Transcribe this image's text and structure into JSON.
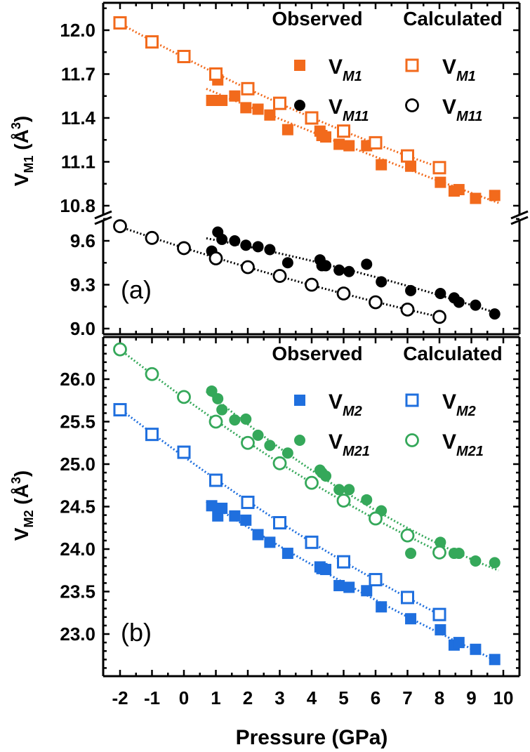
{
  "chart_data": [
    {
      "type": "scatter",
      "panel_label": "(a)",
      "xlabel": "Pressure (GPa)",
      "ylabel": {
        "main": "V",
        "sub": "M1",
        "unit": " (Å",
        "sup": "3",
        "close": ")"
      },
      "xlim": [
        -2.5,
        10.5
      ],
      "y_broken_axis": true,
      "ylim_upper": [
        10.72,
        12.19
      ],
      "ylim_lower": [
        8.96,
        9.76
      ],
      "yticks_upper": [
        "12.0",
        "11.7",
        "11.4",
        "11.1",
        "10.8"
      ],
      "yticks_lower": [
        "9.6",
        "9.3",
        "9.0"
      ],
      "legend": {
        "placement": "top-right",
        "observed_title": "Observed",
        "calculated_title": "Calculated"
      },
      "series": [
        {
          "name": "V",
          "sub": "M1",
          "kind": "observed",
          "marker": "filled-square",
          "color": "#f26a1c",
          "segment": "upper",
          "points": [
            [
              0.87,
              11.52
            ],
            [
              1.06,
              11.66
            ],
            [
              1.19,
              11.52
            ],
            [
              1.59,
              11.55
            ],
            [
              1.94,
              11.47
            ],
            [
              2.32,
              11.46
            ],
            [
              2.69,
              11.42
            ],
            [
              3.25,
              11.32
            ],
            [
              4.26,
              11.31
            ],
            [
              4.32,
              11.28
            ],
            [
              4.44,
              11.27
            ],
            [
              4.86,
              11.22
            ],
            [
              5.17,
              11.21
            ],
            [
              5.72,
              11.21
            ],
            [
              6.18,
              11.08
            ],
            [
              7.1,
              11.07
            ],
            [
              8.03,
              10.96
            ],
            [
              8.46,
              10.9
            ],
            [
              8.61,
              10.91
            ],
            [
              9.13,
              10.85
            ],
            [
              9.73,
              10.87
            ]
          ]
        },
        {
          "name": "V",
          "sub": "M1",
          "kind": "calculated",
          "marker": "open-square",
          "color": "#f26a1c",
          "segment": "upper",
          "points": [
            [
              -2,
              12.05
            ],
            [
              -1,
              11.92
            ],
            [
              0,
              11.82
            ],
            [
              1,
              11.7
            ],
            [
              2,
              11.6
            ],
            [
              3,
              11.5
            ],
            [
              4,
              11.4
            ],
            [
              5,
              11.31
            ],
            [
              6,
              11.23
            ],
            [
              7,
              11.14
            ],
            [
              8,
              11.06
            ]
          ]
        },
        {
          "name": "V",
          "sub": "M11",
          "kind": "observed",
          "marker": "filled-circle",
          "color": "#000000",
          "segment": "lower",
          "points": [
            [
              0.87,
              9.53
            ],
            [
              1.06,
              9.66
            ],
            [
              1.19,
              9.61
            ],
            [
              1.59,
              9.6
            ],
            [
              1.94,
              9.57
            ],
            [
              2.32,
              9.56
            ],
            [
              2.69,
              9.54
            ],
            [
              3.25,
              9.45
            ],
            [
              4.26,
              9.47
            ],
            [
              4.32,
              9.43
            ],
            [
              4.44,
              9.43
            ],
            [
              4.86,
              9.4
            ],
            [
              5.17,
              9.39
            ],
            [
              5.72,
              9.44
            ],
            [
              6.18,
              9.32
            ],
            [
              7.1,
              9.26
            ],
            [
              8.03,
              9.24
            ],
            [
              8.46,
              9.21
            ],
            [
              8.61,
              9.18
            ],
            [
              9.13,
              9.16
            ],
            [
              9.73,
              9.1
            ]
          ]
        },
        {
          "name": "V",
          "sub": "M11",
          "kind": "calculated",
          "marker": "open-circle",
          "color": "#000000",
          "segment": "lower",
          "points": [
            [
              -2,
              9.7
            ],
            [
              -1,
              9.62
            ],
            [
              0,
              9.55
            ],
            [
              1,
              9.48
            ],
            [
              2,
              9.42
            ],
            [
              3,
              9.36
            ],
            [
              4,
              9.3
            ],
            [
              5,
              9.24
            ],
            [
              6,
              9.18
            ],
            [
              7,
              9.13
            ],
            [
              8,
              9.08
            ]
          ]
        }
      ]
    },
    {
      "type": "scatter",
      "panel_label": "(b)",
      "xlabel": "Pressure (GPa)",
      "ylabel": {
        "main": "V",
        "sub": "M2",
        "unit": " (Å",
        "sup": "3",
        "close": ")"
      },
      "xlim": [
        -2.5,
        10.5
      ],
      "ylim": [
        22.5,
        26.5
      ],
      "yticks": [
        "26.0",
        "25.5",
        "25.0",
        "24.5",
        "24.0",
        "23.5",
        "23.0"
      ],
      "xticks": [
        "-2",
        "-1",
        "0",
        "1",
        "2",
        "3",
        "4",
        "5",
        "6",
        "7",
        "8",
        "9",
        "10"
      ],
      "legend": {
        "placement": "top-right",
        "observed_title": "Observed",
        "calculated_title": "Calculated"
      },
      "series": [
        {
          "name": "V",
          "sub": "M2",
          "kind": "observed",
          "marker": "filled-square",
          "color": "#1f6fde",
          "points": [
            [
              0.87,
              24.51
            ],
            [
              1.06,
              24.39
            ],
            [
              1.19,
              24.48
            ],
            [
              1.59,
              24.39
            ],
            [
              1.94,
              24.34
            ],
            [
              2.32,
              24.17
            ],
            [
              2.69,
              24.08
            ],
            [
              3.25,
              23.95
            ],
            [
              4.26,
              23.79
            ],
            [
              4.32,
              23.77
            ],
            [
              4.44,
              23.76
            ],
            [
              4.86,
              23.57
            ],
            [
              5.17,
              23.55
            ],
            [
              5.72,
              23.51
            ],
            [
              6.18,
              23.32
            ],
            [
              7.1,
              23.18
            ],
            [
              8.03,
              23.05
            ],
            [
              8.46,
              22.87
            ],
            [
              8.61,
              22.9
            ],
            [
              9.13,
              22.82
            ],
            [
              9.73,
              22.7
            ]
          ]
        },
        {
          "name": "V",
          "sub": "M2",
          "kind": "calculated",
          "marker": "open-square",
          "color": "#1f6fde",
          "points": [
            [
              -2,
              25.64
            ],
            [
              -1,
              25.35
            ],
            [
              0,
              25.14
            ],
            [
              1,
              24.81
            ],
            [
              2,
              24.55
            ],
            [
              3,
              24.31
            ],
            [
              4,
              24.08
            ],
            [
              5,
              23.85
            ],
            [
              6,
              23.64
            ],
            [
              7,
              23.43
            ],
            [
              8,
              23.23
            ]
          ]
        },
        {
          "name": "V",
          "sub": "M21",
          "kind": "observed",
          "marker": "filled-circle",
          "color": "#35a85a",
          "points": [
            [
              0.87,
              25.86
            ],
            [
              1.06,
              25.77
            ],
            [
              1.19,
              25.64
            ],
            [
              1.59,
              25.52
            ],
            [
              1.94,
              25.53
            ],
            [
              2.32,
              25.34
            ],
            [
              2.69,
              25.22
            ],
            [
              3.25,
              25.13
            ],
            [
              4.26,
              24.93
            ],
            [
              4.32,
              24.9
            ],
            [
              4.44,
              24.86
            ],
            [
              4.86,
              24.7
            ],
            [
              5.17,
              24.7
            ],
            [
              5.72,
              24.58
            ],
            [
              6.18,
              24.45
            ],
            [
              7.1,
              23.95
            ],
            [
              8.03,
              24.08
            ],
            [
              8.46,
              23.95
            ],
            [
              8.61,
              23.95
            ],
            [
              9.13,
              23.86
            ],
            [
              9.73,
              23.84
            ]
          ]
        },
        {
          "name": "V",
          "sub": "M21",
          "kind": "calculated",
          "marker": "open-circle",
          "color": "#35a85a",
          "points": [
            [
              -2,
              26.35
            ],
            [
              -1,
              26.06
            ],
            [
              0,
              25.79
            ],
            [
              1,
              25.5
            ],
            [
              2,
              25.25
            ],
            [
              3,
              25.01
            ],
            [
              4,
              24.78
            ],
            [
              5,
              24.57
            ],
            [
              6,
              24.36
            ],
            [
              7,
              24.16
            ],
            [
              8,
              23.96
            ]
          ]
        }
      ]
    }
  ]
}
